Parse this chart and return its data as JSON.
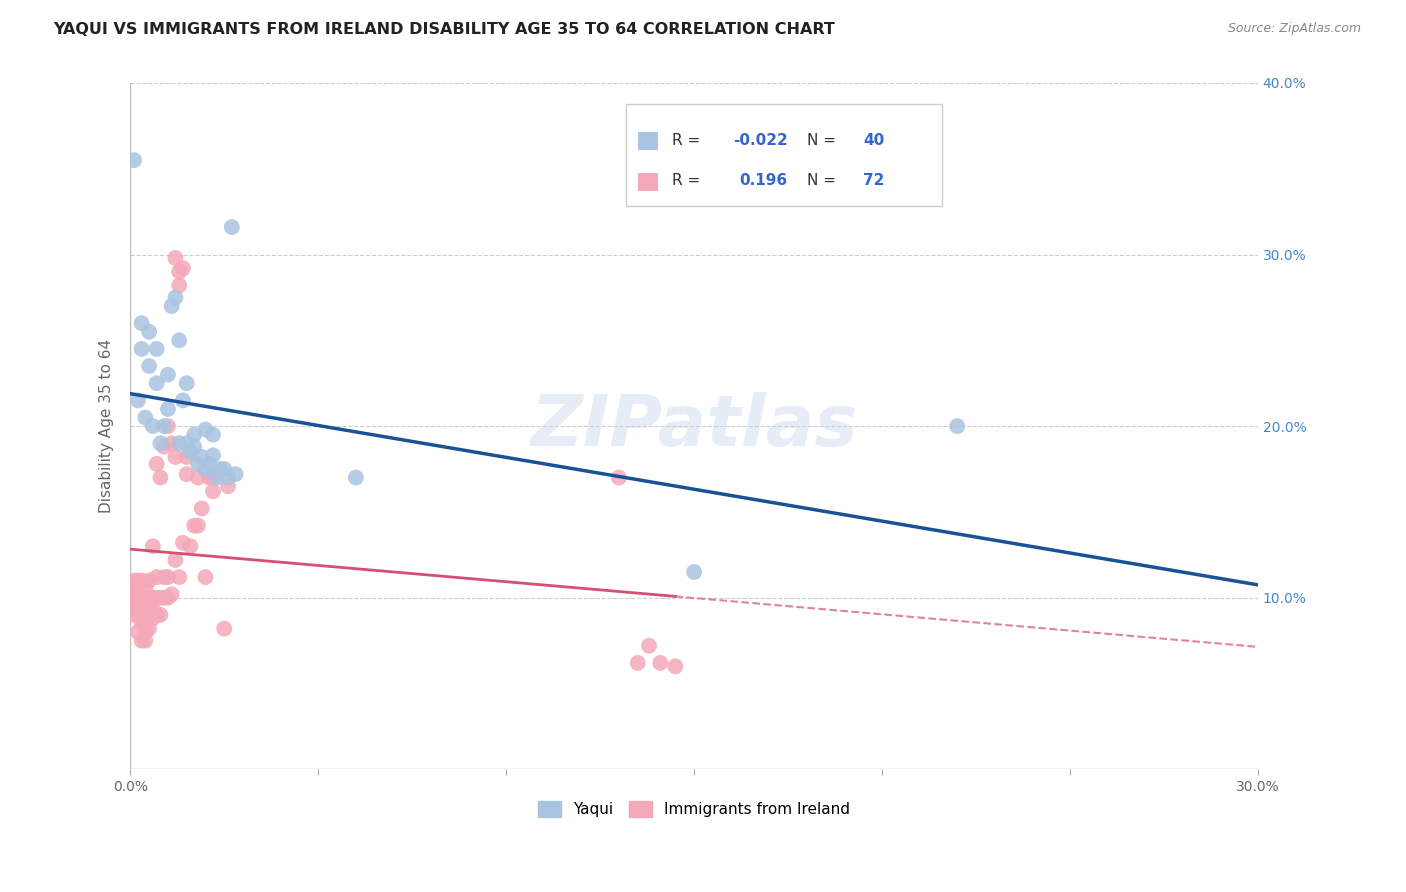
{
  "title": "YAQUI VS IMMIGRANTS FROM IRELAND DISABILITY AGE 35 TO 64 CORRELATION CHART",
  "source": "Source: ZipAtlas.com",
  "ylabel": "Disability Age 35 to 64",
  "xlim": [
    0,
    0.3
  ],
  "ylim": [
    0,
    0.4
  ],
  "legend_r_yaqui": "-0.022",
  "legend_n_yaqui": "40",
  "legend_r_ireland": "0.196",
  "legend_n_ireland": "72",
  "yaqui_color": "#a8c4e0",
  "ireland_color": "#f4a8b8",
  "yaqui_line_color": "#1a5296",
  "ireland_line_color": "#d45070",
  "background_color": "#ffffff",
  "grid_color": "#cccccc",
  "watermark": "ZIPatlas",
  "yaqui_x": [
    0.001,
    0.002,
    0.003,
    0.003,
    0.004,
    0.005,
    0.005,
    0.006,
    0.007,
    0.007,
    0.008,
    0.009,
    0.01,
    0.01,
    0.011,
    0.012,
    0.013,
    0.013,
    0.014,
    0.015,
    0.015,
    0.016,
    0.017,
    0.017,
    0.018,
    0.019,
    0.02,
    0.02,
    0.021,
    0.022,
    0.022,
    0.023,
    0.024,
    0.025,
    0.026,
    0.027,
    0.028,
    0.06,
    0.15,
    0.22
  ],
  "yaqui_y": [
    0.355,
    0.215,
    0.245,
    0.26,
    0.205,
    0.235,
    0.255,
    0.2,
    0.225,
    0.245,
    0.19,
    0.2,
    0.21,
    0.23,
    0.27,
    0.275,
    0.25,
    0.19,
    0.215,
    0.19,
    0.225,
    0.185,
    0.188,
    0.195,
    0.178,
    0.182,
    0.175,
    0.198,
    0.178,
    0.183,
    0.195,
    0.17,
    0.175,
    0.175,
    0.17,
    0.316,
    0.172,
    0.17,
    0.115,
    0.2
  ],
  "ireland_x": [
    0.001,
    0.001,
    0.001,
    0.001,
    0.001,
    0.002,
    0.002,
    0.002,
    0.002,
    0.002,
    0.002,
    0.003,
    0.003,
    0.003,
    0.003,
    0.003,
    0.003,
    0.004,
    0.004,
    0.004,
    0.004,
    0.004,
    0.005,
    0.005,
    0.005,
    0.005,
    0.005,
    0.006,
    0.006,
    0.006,
    0.006,
    0.007,
    0.007,
    0.007,
    0.007,
    0.008,
    0.008,
    0.008,
    0.009,
    0.009,
    0.009,
    0.01,
    0.01,
    0.01,
    0.011,
    0.011,
    0.012,
    0.012,
    0.012,
    0.013,
    0.013,
    0.013,
    0.014,
    0.014,
    0.015,
    0.015,
    0.016,
    0.017,
    0.018,
    0.018,
    0.019,
    0.02,
    0.021,
    0.022,
    0.022,
    0.025,
    0.026,
    0.13,
    0.135,
    0.138,
    0.141,
    0.145
  ],
  "ireland_y": [
    0.09,
    0.095,
    0.1,
    0.105,
    0.11,
    0.08,
    0.09,
    0.095,
    0.1,
    0.105,
    0.11,
    0.075,
    0.085,
    0.09,
    0.095,
    0.1,
    0.11,
    0.075,
    0.08,
    0.085,
    0.095,
    0.105,
    0.082,
    0.09,
    0.095,
    0.1,
    0.11,
    0.088,
    0.093,
    0.1,
    0.13,
    0.09,
    0.1,
    0.112,
    0.178,
    0.09,
    0.1,
    0.17,
    0.1,
    0.112,
    0.188,
    0.1,
    0.112,
    0.2,
    0.102,
    0.19,
    0.122,
    0.182,
    0.298,
    0.112,
    0.282,
    0.29,
    0.132,
    0.292,
    0.172,
    0.182,
    0.13,
    0.142,
    0.142,
    0.17,
    0.152,
    0.112,
    0.17,
    0.162,
    0.17,
    0.082,
    0.165,
    0.17,
    0.062,
    0.072,
    0.062,
    0.06
  ]
}
